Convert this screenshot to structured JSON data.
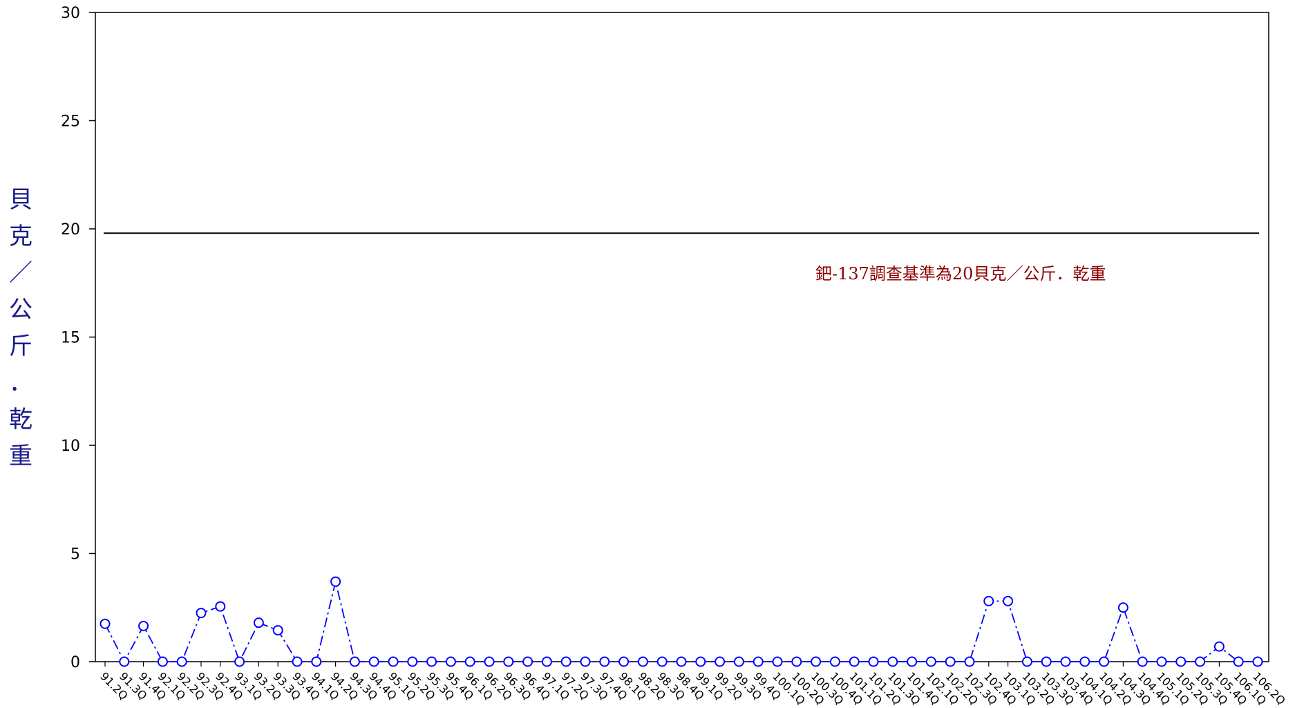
{
  "chart_data": {
    "type": "line",
    "title": "",
    "xlabel": "",
    "ylabel": "貝克／公斤．乾重",
    "ylim": [
      0,
      30
    ],
    "yticks": [
      0,
      5,
      10,
      15,
      20,
      25,
      30
    ],
    "grid": false,
    "categories": [
      "91.2Q",
      "91.3Q",
      "91.4Q",
      "92.1Q",
      "92.2Q",
      "92.3Q",
      "92.4Q",
      "93.1Q",
      "93.2Q",
      "93.3Q",
      "93.4Q",
      "94.1Q",
      "94.2Q",
      "94.3Q",
      "94.4Q",
      "95.1Q",
      "95.2Q",
      "95.3Q",
      "95.4Q",
      "96.1Q",
      "96.2Q",
      "96.3Q",
      "96.4Q",
      "97.1Q",
      "97.2Q",
      "97.3Q",
      "97.4Q",
      "98.1Q",
      "98.2Q",
      "98.3Q",
      "98.4Q",
      "99.1Q",
      "99.2Q",
      "99.3Q",
      "99.4Q",
      "100.1Q",
      "100.2Q",
      "100.3Q",
      "100.4Q",
      "101.1Q",
      "101.2Q",
      "101.3Q",
      "101.4Q",
      "102.1Q",
      "102.2Q",
      "102.3Q",
      "102.4Q",
      "103.1Q",
      "103.2Q",
      "103.3Q",
      "103.4Q",
      "104.1Q",
      "104.2Q",
      "104.3Q",
      "104.4Q",
      "105.1Q",
      "105.2Q",
      "105.3Q",
      "105.4Q",
      "106.1Q",
      "106.2Q"
    ],
    "series": [
      {
        "values": [
          1.75,
          0,
          1.65,
          0,
          0,
          2.25,
          2.55,
          0,
          1.8,
          1.45,
          0,
          0,
          3.7,
          0,
          0,
          0,
          0,
          0,
          0,
          0,
          0,
          0,
          0,
          0,
          0,
          0,
          0,
          0,
          0,
          0,
          0,
          0,
          0,
          0,
          0,
          0,
          0,
          0,
          0,
          0,
          0,
          0,
          0,
          0,
          0,
          0,
          2.8,
          2.8,
          0,
          0,
          0,
          0,
          0,
          2.5,
          0,
          0,
          0,
          0,
          0.7,
          0,
          0
        ],
        "color": "#0000ff",
        "line_style": "dash-dot",
        "marker": "open-circle"
      }
    ],
    "reference_line": {
      "value": 19.8,
      "color": "#000000"
    },
    "annotation": "鈀-137調查基準為20貝克／公斤．乾重",
    "annotation_color": "#8b0000",
    "ylabel_color": "#1a1a8c"
  }
}
